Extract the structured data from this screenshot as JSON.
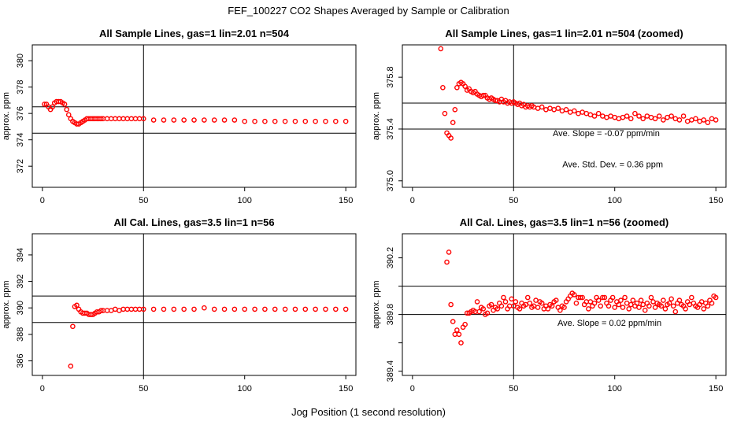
{
  "figure": {
    "title": "FEF_100227  CO2 Shapes Averaged by Sample or Calibration",
    "xlabel": "Jog Position (1 second resolution)"
  },
  "colors": {
    "points": "#ff0000",
    "axes": "#000000",
    "background": "#ffffff"
  },
  "chart_data": [
    {
      "type": "scatter",
      "title": "All Sample Lines, gas=1 lin=2.01 n=504",
      "ylabel": "approx. ppm",
      "xlim": [
        -5,
        155
      ],
      "ylim": [
        370.4,
        381.2
      ],
      "xticks": [
        0,
        50,
        100,
        150
      ],
      "yticks": [
        372,
        374,
        376,
        378,
        380
      ],
      "vline": 50,
      "hlines": [
        376.5,
        374.5
      ],
      "annotations": [],
      "series": [
        {
          "x": [
            1,
            2,
            3,
            4,
            5,
            6,
            7,
            8,
            9,
            10,
            11,
            12,
            13,
            14,
            15,
            16,
            17,
            18,
            19,
            20,
            21,
            22,
            23,
            24,
            25,
            26,
            27,
            28,
            29,
            30,
            32,
            34,
            36,
            38,
            40,
            42,
            44,
            46,
            48,
            50,
            55,
            60,
            65,
            70,
            75,
            80,
            85,
            90,
            95,
            100,
            105,
            110,
            115,
            120,
            125,
            130,
            135,
            140,
            145,
            150
          ],
          "y": [
            376.7,
            376.7,
            376.5,
            376.3,
            376.5,
            376.8,
            376.9,
            376.9,
            376.9,
            376.8,
            376.7,
            376.3,
            375.9,
            375.6,
            375.4,
            375.3,
            375.2,
            375.2,
            375.3,
            375.4,
            375.5,
            375.6,
            375.6,
            375.6,
            375.6,
            375.6,
            375.6,
            375.6,
            375.6,
            375.6,
            375.6,
            375.6,
            375.6,
            375.6,
            375.6,
            375.6,
            375.6,
            375.6,
            375.6,
            375.6,
            375.5,
            375.5,
            375.5,
            375.5,
            375.5,
            375.5,
            375.5,
            375.5,
            375.5,
            375.4,
            375.4,
            375.4,
            375.4,
            375.4,
            375.4,
            375.4,
            375.4,
            375.4,
            375.4,
            375.4
          ]
        }
      ]
    },
    {
      "type": "scatter",
      "title": "All Sample Lines, gas=1 lin=2.01 n=504 (zoomed)",
      "ylabel": "approx. ppm",
      "xlim": [
        -5,
        155
      ],
      "ylim": [
        374.95,
        376.05
      ],
      "xticks": [
        0,
        50,
        100,
        150
      ],
      "yticks": [
        375.0,
        375.4,
        375.8
      ],
      "vline": 50,
      "hlines": [
        375.6,
        375.4
      ],
      "annotations": [
        "Ave. Slope =  -0.07  ppm/min",
        "Ave. Std. Dev. =  0.36  ppm"
      ],
      "series": [
        {
          "x": [
            14,
            15,
            16,
            17,
            18,
            19,
            20,
            21,
            22,
            23,
            24,
            25,
            26,
            27,
            28,
            29,
            30,
            31,
            32,
            33,
            34,
            35,
            36,
            37,
            38,
            39,
            40,
            41,
            42,
            43,
            44,
            45,
            46,
            47,
            48,
            49,
            50,
            51,
            52,
            53,
            54,
            55,
            56,
            57,
            58,
            59,
            60,
            62,
            64,
            66,
            68,
            70,
            72,
            74,
            76,
            78,
            80,
            82,
            84,
            86,
            88,
            90,
            92,
            94,
            96,
            98,
            100,
            102,
            104,
            106,
            108,
            110,
            112,
            114,
            116,
            118,
            120,
            122,
            124,
            126,
            128,
            130,
            132,
            134,
            136,
            138,
            140,
            142,
            144,
            146,
            148,
            150
          ],
          "y": [
            376.02,
            375.72,
            375.52,
            375.37,
            375.35,
            375.33,
            375.45,
            375.55,
            375.72,
            375.75,
            375.76,
            375.75,
            375.73,
            375.7,
            375.71,
            375.69,
            375.68,
            375.69,
            375.67,
            375.66,
            375.65,
            375.66,
            375.66,
            375.64,
            375.63,
            375.64,
            375.63,
            375.62,
            375.62,
            375.61,
            375.63,
            375.61,
            375.62,
            375.6,
            375.61,
            375.6,
            375.61,
            375.6,
            375.59,
            375.6,
            375.58,
            375.59,
            375.57,
            375.58,
            375.57,
            375.58,
            375.57,
            375.56,
            375.57,
            375.55,
            375.56,
            375.55,
            375.56,
            375.54,
            375.55,
            375.53,
            375.54,
            375.52,
            375.53,
            375.52,
            375.51,
            375.5,
            375.52,
            375.5,
            375.49,
            375.5,
            375.49,
            375.48,
            375.49,
            375.5,
            375.48,
            375.52,
            375.5,
            375.48,
            375.5,
            375.49,
            375.48,
            375.5,
            375.47,
            375.49,
            375.5,
            375.48,
            375.47,
            375.5,
            375.46,
            375.47,
            375.48,
            375.46,
            375.47,
            375.45,
            375.48,
            375.47
          ]
        }
      ]
    },
    {
      "type": "scatter",
      "title": "All Cal. Lines, gas=3.5 lin=1 n=56",
      "ylabel": "approx. ppm",
      "xlim": [
        -5,
        155
      ],
      "ylim": [
        384.9,
        395.6
      ],
      "xticks": [
        0,
        50,
        100,
        150
      ],
      "yticks": [
        386,
        388,
        390,
        392,
        394
      ],
      "vline": 50,
      "hlines": [
        390.9,
        388.9
      ],
      "annotations": [],
      "series": [
        {
          "x": [
            14,
            15,
            16,
            17,
            18,
            19,
            20,
            21,
            22,
            23,
            24,
            25,
            26,
            27,
            28,
            29,
            30,
            32,
            34,
            36,
            38,
            40,
            42,
            44,
            46,
            48,
            50,
            55,
            60,
            65,
            70,
            75,
            80,
            85,
            90,
            95,
            100,
            105,
            110,
            115,
            120,
            125,
            130,
            135,
            140,
            145,
            150
          ],
          "y": [
            385.6,
            388.6,
            390.1,
            390.2,
            389.9,
            389.7,
            389.6,
            389.6,
            389.6,
            389.5,
            389.5,
            389.5,
            389.6,
            389.7,
            389.7,
            389.8,
            389.8,
            389.8,
            389.8,
            389.9,
            389.8,
            389.9,
            389.9,
            389.9,
            389.9,
            389.9,
            389.9,
            389.9,
            389.9,
            389.9,
            389.9,
            389.9,
            390.0,
            389.9,
            389.9,
            389.9,
            389.9,
            389.9,
            389.9,
            389.9,
            389.9,
            389.9,
            389.9,
            389.9,
            389.9,
            389.9,
            389.9
          ]
        }
      ]
    },
    {
      "type": "scatter",
      "title": "All Cal. Lines, gas=3.5 lin=1 n=56 (zoomed)",
      "ylabel": "approx. ppm",
      "xlim": [
        -5,
        155
      ],
      "ylim": [
        389.37,
        390.37
      ],
      "xticks": [
        0,
        50,
        100,
        150
      ],
      "yticks": [
        389.4,
        389.6,
        389.8,
        390.0,
        390.2
      ],
      "yticklabels": [
        "389.4",
        "",
        "389.8",
        "",
        "390.2"
      ],
      "vline": 50,
      "hlines": [
        390.0,
        389.8
      ],
      "annotations": [
        "Ave. Slope =  0.02  ppm/min"
      ],
      "series": [
        {
          "x": [
            17,
            18,
            19,
            20,
            21,
            22,
            23,
            24,
            25,
            26,
            27,
            28,
            29,
            30,
            31,
            32,
            33,
            34,
            35,
            36,
            37,
            38,
            39,
            40,
            41,
            42,
            43,
            44,
            45,
            46,
            47,
            48,
            49,
            50,
            51,
            52,
            53,
            54,
            55,
            56,
            57,
            58,
            59,
            60,
            61,
            62,
            63,
            64,
            65,
            66,
            67,
            68,
            69,
            70,
            71,
            72,
            73,
            74,
            75,
            76,
            77,
            78,
            79,
            80,
            81,
            82,
            83,
            84,
            85,
            86,
            87,
            88,
            89,
            90,
            91,
            92,
            93,
            94,
            95,
            96,
            97,
            98,
            99,
            100,
            101,
            102,
            103,
            104,
            105,
            106,
            107,
            108,
            109,
            110,
            111,
            112,
            113,
            114,
            115,
            116,
            117,
            118,
            119,
            120,
            121,
            122,
            123,
            124,
            125,
            126,
            127,
            128,
            129,
            130,
            131,
            132,
            133,
            134,
            135,
            136,
            137,
            138,
            139,
            140,
            141,
            142,
            143,
            144,
            145,
            146,
            147,
            148,
            149,
            150
          ],
          "y": [
            390.17,
            390.24,
            389.87,
            389.75,
            389.66,
            389.69,
            389.66,
            389.6,
            389.71,
            389.73,
            389.81,
            389.81,
            389.82,
            389.83,
            389.82,
            389.89,
            389.82,
            389.85,
            389.84,
            389.8,
            389.81,
            389.86,
            389.87,
            389.83,
            389.85,
            389.84,
            389.88,
            389.86,
            389.92,
            389.89,
            389.84,
            389.86,
            389.91,
            389.86,
            389.89,
            389.85,
            389.84,
            389.88,
            389.86,
            389.87,
            389.92,
            389.88,
            389.85,
            389.86,
            389.9,
            389.85,
            389.89,
            389.88,
            389.84,
            389.86,
            389.84,
            389.87,
            389.86,
            389.89,
            389.9,
            389.85,
            389.83,
            389.86,
            389.85,
            389.89,
            389.91,
            389.93,
            389.95,
            389.94,
            389.88,
            389.92,
            389.92,
            389.92,
            389.87,
            389.89,
            389.84,
            389.89,
            389.86,
            389.88,
            389.92,
            389.9,
            389.86,
            389.92,
            389.92,
            389.88,
            389.86,
            389.9,
            389.92,
            389.85,
            389.89,
            389.87,
            389.9,
            389.85,
            389.92,
            389.88,
            389.84,
            389.87,
            389.9,
            389.86,
            389.88,
            389.85,
            389.9,
            389.87,
            389.83,
            389.88,
            389.86,
            389.92,
            389.89,
            389.85,
            389.88,
            389.87,
            389.86,
            389.9,
            389.84,
            389.87,
            389.88,
            389.91,
            389.86,
            389.82,
            389.88,
            389.9,
            389.87,
            389.86,
            389.84,
            389.89,
            389.87,
            389.92,
            389.88,
            389.86,
            389.85,
            389.87,
            389.89,
            389.84,
            389.88,
            389.86,
            389.9,
            389.88,
            389.93,
            389.92
          ]
        }
      ]
    }
  ]
}
